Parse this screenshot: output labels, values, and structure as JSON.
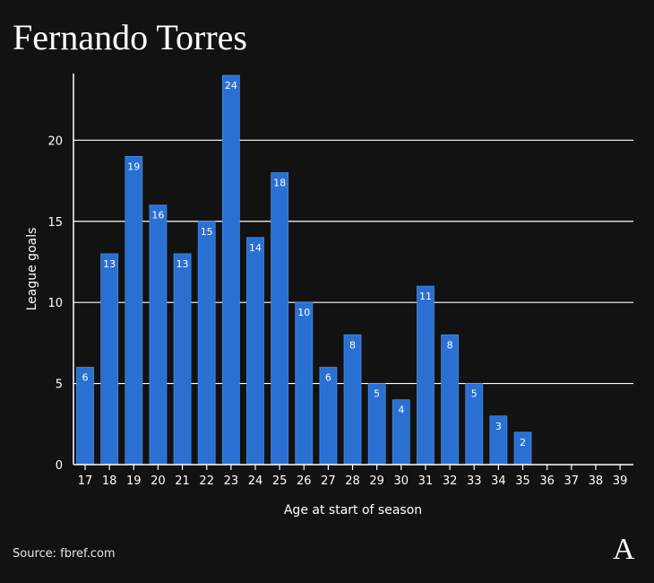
{
  "chart_data": {
    "type": "bar",
    "title": "Fernando Torres",
    "xlabel": "Age at start of season",
    "ylabel": "League goals",
    "categories": [
      "17",
      "18",
      "19",
      "20",
      "21",
      "22",
      "23",
      "24",
      "25",
      "26",
      "27",
      "28",
      "29",
      "30",
      "31",
      "32",
      "33",
      "34",
      "35",
      "36",
      "37",
      "38",
      "39"
    ],
    "values": [
      6,
      13,
      19,
      16,
      13,
      15,
      24,
      14,
      18,
      10,
      6,
      8,
      5,
      4,
      11,
      8,
      5,
      3,
      2,
      0,
      0,
      0,
      0
    ],
    "ylim": [
      0,
      24
    ],
    "yticks": [
      0,
      5,
      10,
      15,
      20
    ],
    "grid": true,
    "bar_color": "#2970d2"
  },
  "source": "Source: fbref.com",
  "logo_text": "A"
}
